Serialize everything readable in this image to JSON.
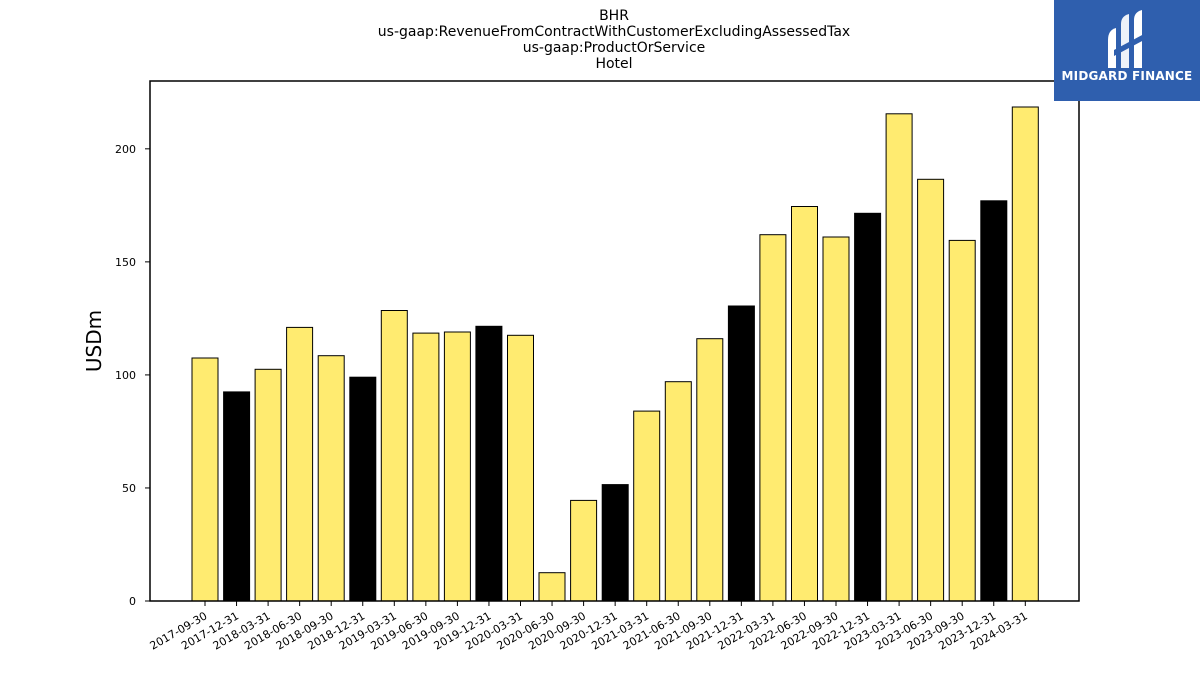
{
  "logo": {
    "text": "MIDGARD FINANCE",
    "background": "#2f5fae"
  },
  "chart_data": {
    "type": "bar",
    "title": [
      "BHR",
      "us-gaap:RevenueFromContractWithCustomerExcludingAssessedTax",
      "us-gaap:ProductOrService",
      "Hotel"
    ],
    "ylabel": "USDm",
    "xlabel": "",
    "ylim": [
      0,
      230
    ],
    "yticks": [
      0,
      50,
      100,
      150,
      200
    ],
    "grid": false,
    "colors": {
      "quarter": "#ffeb70",
      "year_end": "#000000"
    },
    "categories": [
      "2017-09-30",
      "2017-12-31",
      "2018-03-31",
      "2018-06-30",
      "2018-09-30",
      "2018-12-31",
      "2019-03-31",
      "2019-06-30",
      "2019-09-30",
      "2019-12-31",
      "2020-03-31",
      "2020-06-30",
      "2020-09-30",
      "2020-12-31",
      "2021-03-31",
      "2021-06-30",
      "2021-09-30",
      "2021-12-31",
      "2022-03-31",
      "2022-06-30",
      "2022-09-30",
      "2022-12-31",
      "2023-03-31",
      "2023-06-30",
      "2023-09-30",
      "2023-12-31",
      "2024-03-31"
    ],
    "values": [
      107.5,
      92.5,
      102.5,
      121,
      108.5,
      99,
      128.5,
      118.5,
      119,
      121.5,
      117.5,
      12.5,
      44.5,
      51.5,
      84,
      97,
      116,
      130.5,
      162,
      174.5,
      161,
      171.5,
      215.5,
      186.5,
      159.5,
      177,
      218.5
    ],
    "highlight": [
      false,
      true,
      false,
      false,
      false,
      true,
      false,
      false,
      false,
      true,
      false,
      false,
      false,
      true,
      false,
      false,
      false,
      true,
      false,
      false,
      false,
      true,
      false,
      false,
      false,
      true,
      false
    ]
  }
}
